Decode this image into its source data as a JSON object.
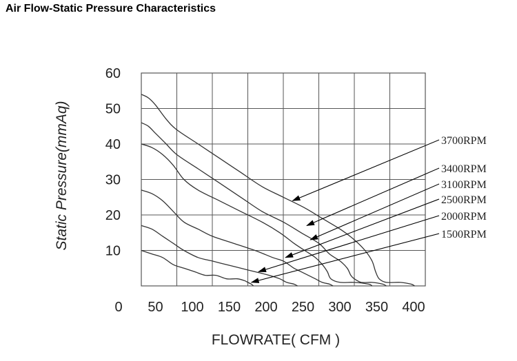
{
  "page_title": "Air Flow-Static Pressure Characteristics",
  "chart_data": {
    "type": "line",
    "title": "Air Flow-Static Pressure Characteristics",
    "xlabel": "FLOWRATE( CFM )",
    "ylabel": "Static Pressure(mmAq)",
    "xlim": [
      0,
      400
    ],
    "ylim": [
      0,
      60
    ],
    "x_ticks": [
      0,
      50,
      100,
      150,
      200,
      250,
      300,
      350,
      400
    ],
    "y_ticks": [
      10,
      20,
      30,
      40,
      50,
      60
    ],
    "grid": true,
    "series": [
      {
        "name": "3700RPM",
        "points": [
          [
            0,
            54
          ],
          [
            10,
            53
          ],
          [
            20,
            51
          ],
          [
            35,
            47
          ],
          [
            50,
            44
          ],
          [
            80,
            40
          ],
          [
            110,
            36
          ],
          [
            140,
            32
          ],
          [
            170,
            28
          ],
          [
            200,
            25
          ],
          [
            230,
            22
          ],
          [
            255,
            19
          ],
          [
            280,
            16
          ],
          [
            300,
            13
          ],
          [
            315,
            10
          ],
          [
            325,
            7
          ],
          [
            330,
            4
          ],
          [
            335,
            2
          ],
          [
            345,
            1
          ],
          [
            365,
            1
          ],
          [
            380,
            0.5
          ],
          [
            385,
            0
          ]
        ]
      },
      {
        "name": "3400RPM",
        "points": [
          [
            0,
            46
          ],
          [
            10,
            45
          ],
          [
            20,
            43
          ],
          [
            35,
            40
          ],
          [
            50,
            37
          ],
          [
            80,
            33
          ],
          [
            110,
            29
          ],
          [
            140,
            25
          ],
          [
            170,
            21
          ],
          [
            200,
            18
          ],
          [
            225,
            15
          ],
          [
            250,
            12
          ],
          [
            265,
            9
          ],
          [
            280,
            7
          ],
          [
            290,
            5
          ],
          [
            295,
            3
          ],
          [
            300,
            2
          ],
          [
            310,
            1
          ],
          [
            325,
            1
          ],
          [
            340,
            0.5
          ],
          [
            345,
            0
          ]
        ]
      },
      {
        "name": "3100RPM",
        "points": [
          [
            0,
            40
          ],
          [
            15,
            39
          ],
          [
            30,
            37
          ],
          [
            45,
            34
          ],
          [
            60,
            30
          ],
          [
            80,
            27
          ],
          [
            110,
            24
          ],
          [
            140,
            21
          ],
          [
            170,
            18
          ],
          [
            195,
            15
          ],
          [
            215,
            12
          ],
          [
            230,
            10
          ],
          [
            245,
            8
          ],
          [
            255,
            6
          ],
          [
            262,
            4
          ],
          [
            267,
            2
          ],
          [
            280,
            1
          ],
          [
            300,
            1
          ],
          [
            320,
            0.5
          ],
          [
            325,
            0
          ]
        ]
      },
      {
        "name": "2500RPM",
        "points": [
          [
            0,
            27
          ],
          [
            15,
            26
          ],
          [
            30,
            24
          ],
          [
            45,
            21
          ],
          [
            60,
            18
          ],
          [
            80,
            16
          ],
          [
            100,
            14
          ],
          [
            130,
            12
          ],
          [
            160,
            10
          ],
          [
            185,
            8
          ],
          [
            200,
            7
          ],
          [
            215,
            5
          ],
          [
            225,
            4
          ],
          [
            235,
            3
          ],
          [
            245,
            2
          ],
          [
            255,
            1
          ],
          [
            265,
            0.5
          ],
          [
            270,
            0
          ]
        ]
      },
      {
        "name": "2000RPM",
        "points": [
          [
            0,
            17
          ],
          [
            15,
            16
          ],
          [
            30,
            14
          ],
          [
            45,
            12
          ],
          [
            60,
            10
          ],
          [
            80,
            8
          ],
          [
            100,
            7
          ],
          [
            120,
            6
          ],
          [
            140,
            5
          ],
          [
            160,
            4
          ],
          [
            180,
            3
          ],
          [
            195,
            2
          ],
          [
            205,
            1
          ],
          [
            215,
            0.5
          ],
          [
            220,
            0
          ]
        ]
      },
      {
        "name": "1500RPM",
        "points": [
          [
            0,
            10
          ],
          [
            15,
            9
          ],
          [
            30,
            8
          ],
          [
            45,
            6
          ],
          [
            60,
            5
          ],
          [
            75,
            4
          ],
          [
            90,
            3
          ],
          [
            105,
            3
          ],
          [
            120,
            2
          ],
          [
            135,
            2
          ],
          [
            145,
            1.5
          ],
          [
            150,
            1
          ],
          [
            155,
            0.5
          ],
          [
            158,
            0
          ]
        ]
      }
    ],
    "annotations": [
      {
        "label": "3700RPM",
        "points_to": [
          213,
          24
        ]
      },
      {
        "label": "3400RPM",
        "points_to": [
          233,
          17
        ]
      },
      {
        "label": "3100RPM",
        "points_to": [
          238,
          13
        ]
      },
      {
        "label": "2500RPM",
        "points_to": [
          203,
          8
        ]
      },
      {
        "label": "2000RPM",
        "points_to": [
          165,
          4
        ]
      },
      {
        "label": "1500RPM",
        "points_to": [
          155,
          1
        ]
      }
    ]
  }
}
